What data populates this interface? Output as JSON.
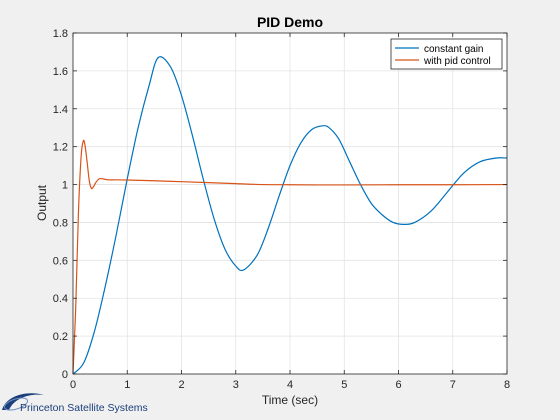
{
  "chart_data": {
    "type": "line",
    "title": "PID Demo",
    "xlabel": "Time (sec)",
    "ylabel": "Output",
    "xlim": [
      0,
      8
    ],
    "ylim": [
      0,
      1.8
    ],
    "xticks": [
      0,
      1,
      2,
      3,
      4,
      5,
      6,
      7,
      8
    ],
    "yticks": [
      0,
      0.2,
      0.4,
      0.6,
      0.8,
      1,
      1.2,
      1.4,
      1.6,
      1.8
    ],
    "grid": true,
    "legend_position": "top-right",
    "series": [
      {
        "name": "constant gain",
        "color": "#0072bd",
        "x": [
          0,
          0.2,
          0.4,
          0.6,
          0.8,
          1.0,
          1.2,
          1.4,
          1.57,
          1.8,
          2.0,
          2.2,
          2.4,
          2.6,
          2.8,
          3.0,
          3.15,
          3.4,
          3.6,
          3.8,
          4.0,
          4.2,
          4.4,
          4.6,
          4.72,
          4.9,
          5.1,
          5.3,
          5.5,
          5.7,
          5.9,
          6.1,
          6.3,
          6.6,
          6.9,
          7.2,
          7.5,
          7.8,
          8.0
        ],
        "y": [
          0,
          0.06,
          0.23,
          0.47,
          0.74,
          1.03,
          1.3,
          1.52,
          1.67,
          1.62,
          1.47,
          1.26,
          1.03,
          0.82,
          0.66,
          0.57,
          0.55,
          0.63,
          0.77,
          0.94,
          1.1,
          1.22,
          1.29,
          1.31,
          1.3,
          1.24,
          1.12,
          1.0,
          0.9,
          0.84,
          0.8,
          0.79,
          0.8,
          0.86,
          0.96,
          1.06,
          1.12,
          1.14,
          1.14
        ]
      },
      {
        "name": "with pid control",
        "color": "#d95319",
        "x": [
          0,
          0.05,
          0.1,
          0.15,
          0.19,
          0.22,
          0.26,
          0.3,
          0.34,
          0.38,
          0.42,
          0.48,
          0.55,
          0.65,
          0.8,
          1.0,
          1.5,
          2.0,
          2.5,
          3.0,
          3.5,
          4.0,
          4.5,
          5.0,
          6.0,
          7.0,
          8.0
        ],
        "y": [
          0,
          0.35,
          0.85,
          1.15,
          1.23,
          1.21,
          1.12,
          1.02,
          0.98,
          0.99,
          1.01,
          1.03,
          1.03,
          1.025,
          1.025,
          1.024,
          1.02,
          1.015,
          1.01,
          1.005,
          1.0,
          0.999,
          0.998,
          0.998,
          0.999,
          0.999,
          1.0
        ]
      }
    ]
  },
  "logo": {
    "text": "Princeton Satellite Systems",
    "color": "#1b3f7a"
  }
}
